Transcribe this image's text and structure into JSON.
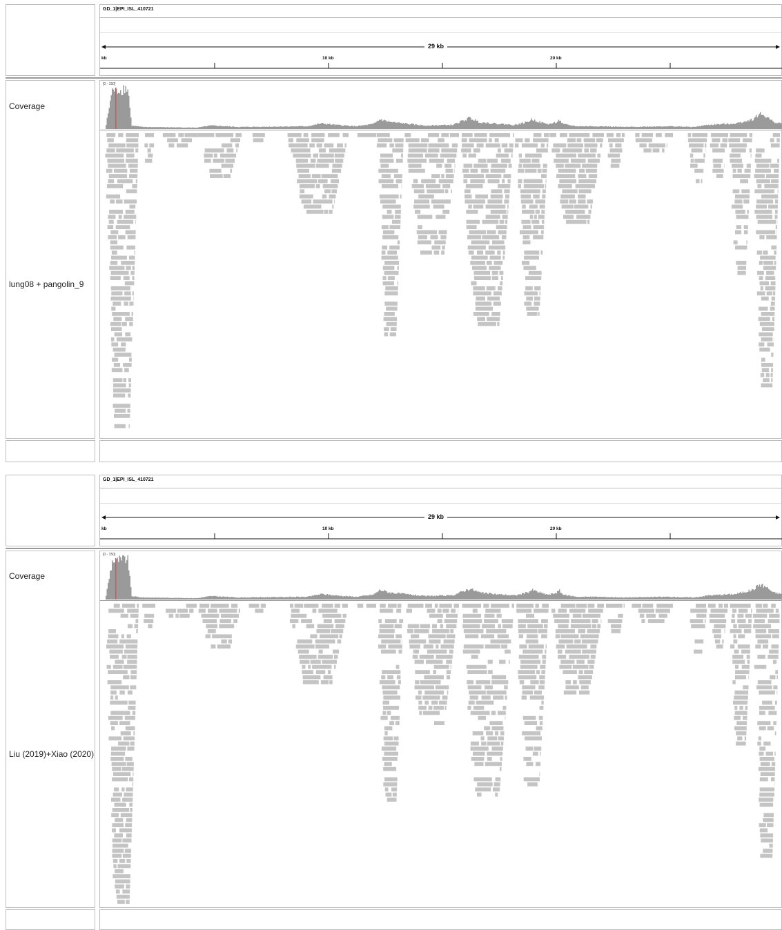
{
  "genome": {
    "name": "GD_1|EPI_ISL_410721"
  },
  "ruler": {
    "span": "29 kb",
    "ticks": [
      "kb",
      "10 kb",
      "20 kb"
    ]
  },
  "colors": {
    "coverage": "#9a9a9a",
    "reads": "#c4c4c4",
    "border": "#bdbdbd",
    "mismatch": "#d9534f"
  },
  "panels": [
    {
      "coverage_label": "Coverage",
      "coverage_range": "[0 - 150]",
      "sample_label": "lung08 + pangolin_9"
    },
    {
      "coverage_label": "Coverage",
      "coverage_range": "[0 - 150]",
      "sample_label": "Liu (2019)+Xiao (2020)"
    }
  ]
}
